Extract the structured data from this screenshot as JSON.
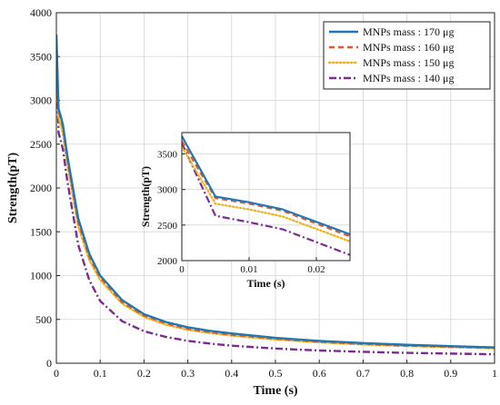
{
  "chart_data": [
    {
      "type": "line",
      "title": "",
      "xlabel": "Time (s)",
      "ylabel": "Strength(pT)",
      "xlim": [
        0,
        1
      ],
      "ylim": [
        0,
        4000
      ],
      "xticks": [
        "0",
        "0.1",
        "0.2",
        "0.3",
        "0.4",
        "0.5",
        "0.6",
        "0.7",
        "0.8",
        "0.9",
        "1"
      ],
      "yticks": [
        "0",
        "500",
        "1000",
        "1500",
        "2000",
        "2500",
        "3000",
        "3500",
        "4000"
      ],
      "grid": true,
      "legend_position": "top-right",
      "series": [
        {
          "name": "MNPs mass : 170 μg",
          "color": "#1f77b4",
          "style": "solid",
          "x": [
            0,
            0.005,
            0.01,
            0.015,
            0.025,
            0.05,
            0.075,
            0.1,
            0.15,
            0.2,
            0.25,
            0.3,
            0.35,
            0.4,
            0.5,
            0.6,
            0.7,
            0.8,
            0.9,
            1.0
          ],
          "values": [
            3750,
            2900,
            2820,
            2720,
            2370,
            1650,
            1250,
            1000,
            720,
            560,
            470,
            410,
            370,
            340,
            290,
            255,
            230,
            210,
            195,
            180
          ]
        },
        {
          "name": "MNPs mass : 160 μg",
          "color": "#e8562a",
          "style": "dashed",
          "x": [
            0,
            0.005,
            0.01,
            0.015,
            0.025,
            0.05,
            0.075,
            0.1,
            0.15,
            0.2,
            0.25,
            0.3,
            0.35,
            0.4,
            0.5,
            0.6,
            0.7,
            0.8,
            0.9,
            1.0
          ],
          "values": [
            3680,
            2880,
            2800,
            2700,
            2340,
            1610,
            1220,
            980,
            700,
            545,
            455,
            395,
            355,
            325,
            280,
            245,
            220,
            200,
            188,
            175
          ]
        },
        {
          "name": "MNPs mass : 150 μg",
          "color": "#f0b21a",
          "style": "dotted",
          "x": [
            0,
            0.005,
            0.01,
            0.015,
            0.025,
            0.05,
            0.075,
            0.1,
            0.15,
            0.2,
            0.25,
            0.3,
            0.35,
            0.4,
            0.5,
            0.6,
            0.7,
            0.8,
            0.9,
            1.0
          ],
          "values": [
            3600,
            2800,
            2720,
            2620,
            2270,
            1560,
            1180,
            950,
            680,
            530,
            440,
            380,
            345,
            315,
            270,
            238,
            214,
            196,
            183,
            170
          ]
        },
        {
          "name": "MNPs mass : 140 μg",
          "color": "#7b2d8e",
          "style": "dashdot",
          "x": [
            0,
            0.005,
            0.01,
            0.015,
            0.025,
            0.05,
            0.075,
            0.1,
            0.15,
            0.2,
            0.25,
            0.3,
            0.35,
            0.4,
            0.5,
            0.6,
            0.7,
            0.8,
            0.9,
            1.0
          ],
          "values": [
            3650,
            2630,
            2540,
            2440,
            2080,
            1350,
            950,
            710,
            480,
            365,
            300,
            255,
            225,
            200,
            168,
            145,
            130,
            118,
            110,
            102
          ]
        }
      ]
    },
    {
      "type": "line",
      "title": "",
      "xlabel": "Time (s)",
      "ylabel": "Strength(pT)",
      "xlim": [
        0,
        0.025
      ],
      "ylim": [
        2000,
        3800
      ],
      "xticks": [
        "0",
        "0.01",
        "0.02"
      ],
      "yticks": [
        "2000",
        "2500",
        "3000",
        "3500"
      ],
      "grid": true,
      "series": [
        {
          "name": "MNPs mass : 170 μg",
          "color": "#1f77b4",
          "style": "solid",
          "x": [
            0,
            0.005,
            0.01,
            0.015,
            0.025
          ],
          "values": [
            3750,
            2900,
            2820,
            2720,
            2370
          ]
        },
        {
          "name": "MNPs mass : 160 μg",
          "color": "#e8562a",
          "style": "dashed",
          "x": [
            0,
            0.005,
            0.01,
            0.015,
            0.025
          ],
          "values": [
            3680,
            2880,
            2800,
            2700,
            2340
          ]
        },
        {
          "name": "MNPs mass : 150 μg",
          "color": "#f0b21a",
          "style": "dotted",
          "x": [
            0,
            0.005,
            0.01,
            0.015,
            0.025
          ],
          "values": [
            3600,
            2800,
            2720,
            2620,
            2270
          ]
        },
        {
          "name": "MNPs mass : 140 μg",
          "color": "#7b2d8e",
          "style": "dashdot",
          "x": [
            0,
            0.005,
            0.01,
            0.015,
            0.025
          ],
          "values": [
            3650,
            2630,
            2540,
            2440,
            2080
          ]
        }
      ]
    }
  ]
}
